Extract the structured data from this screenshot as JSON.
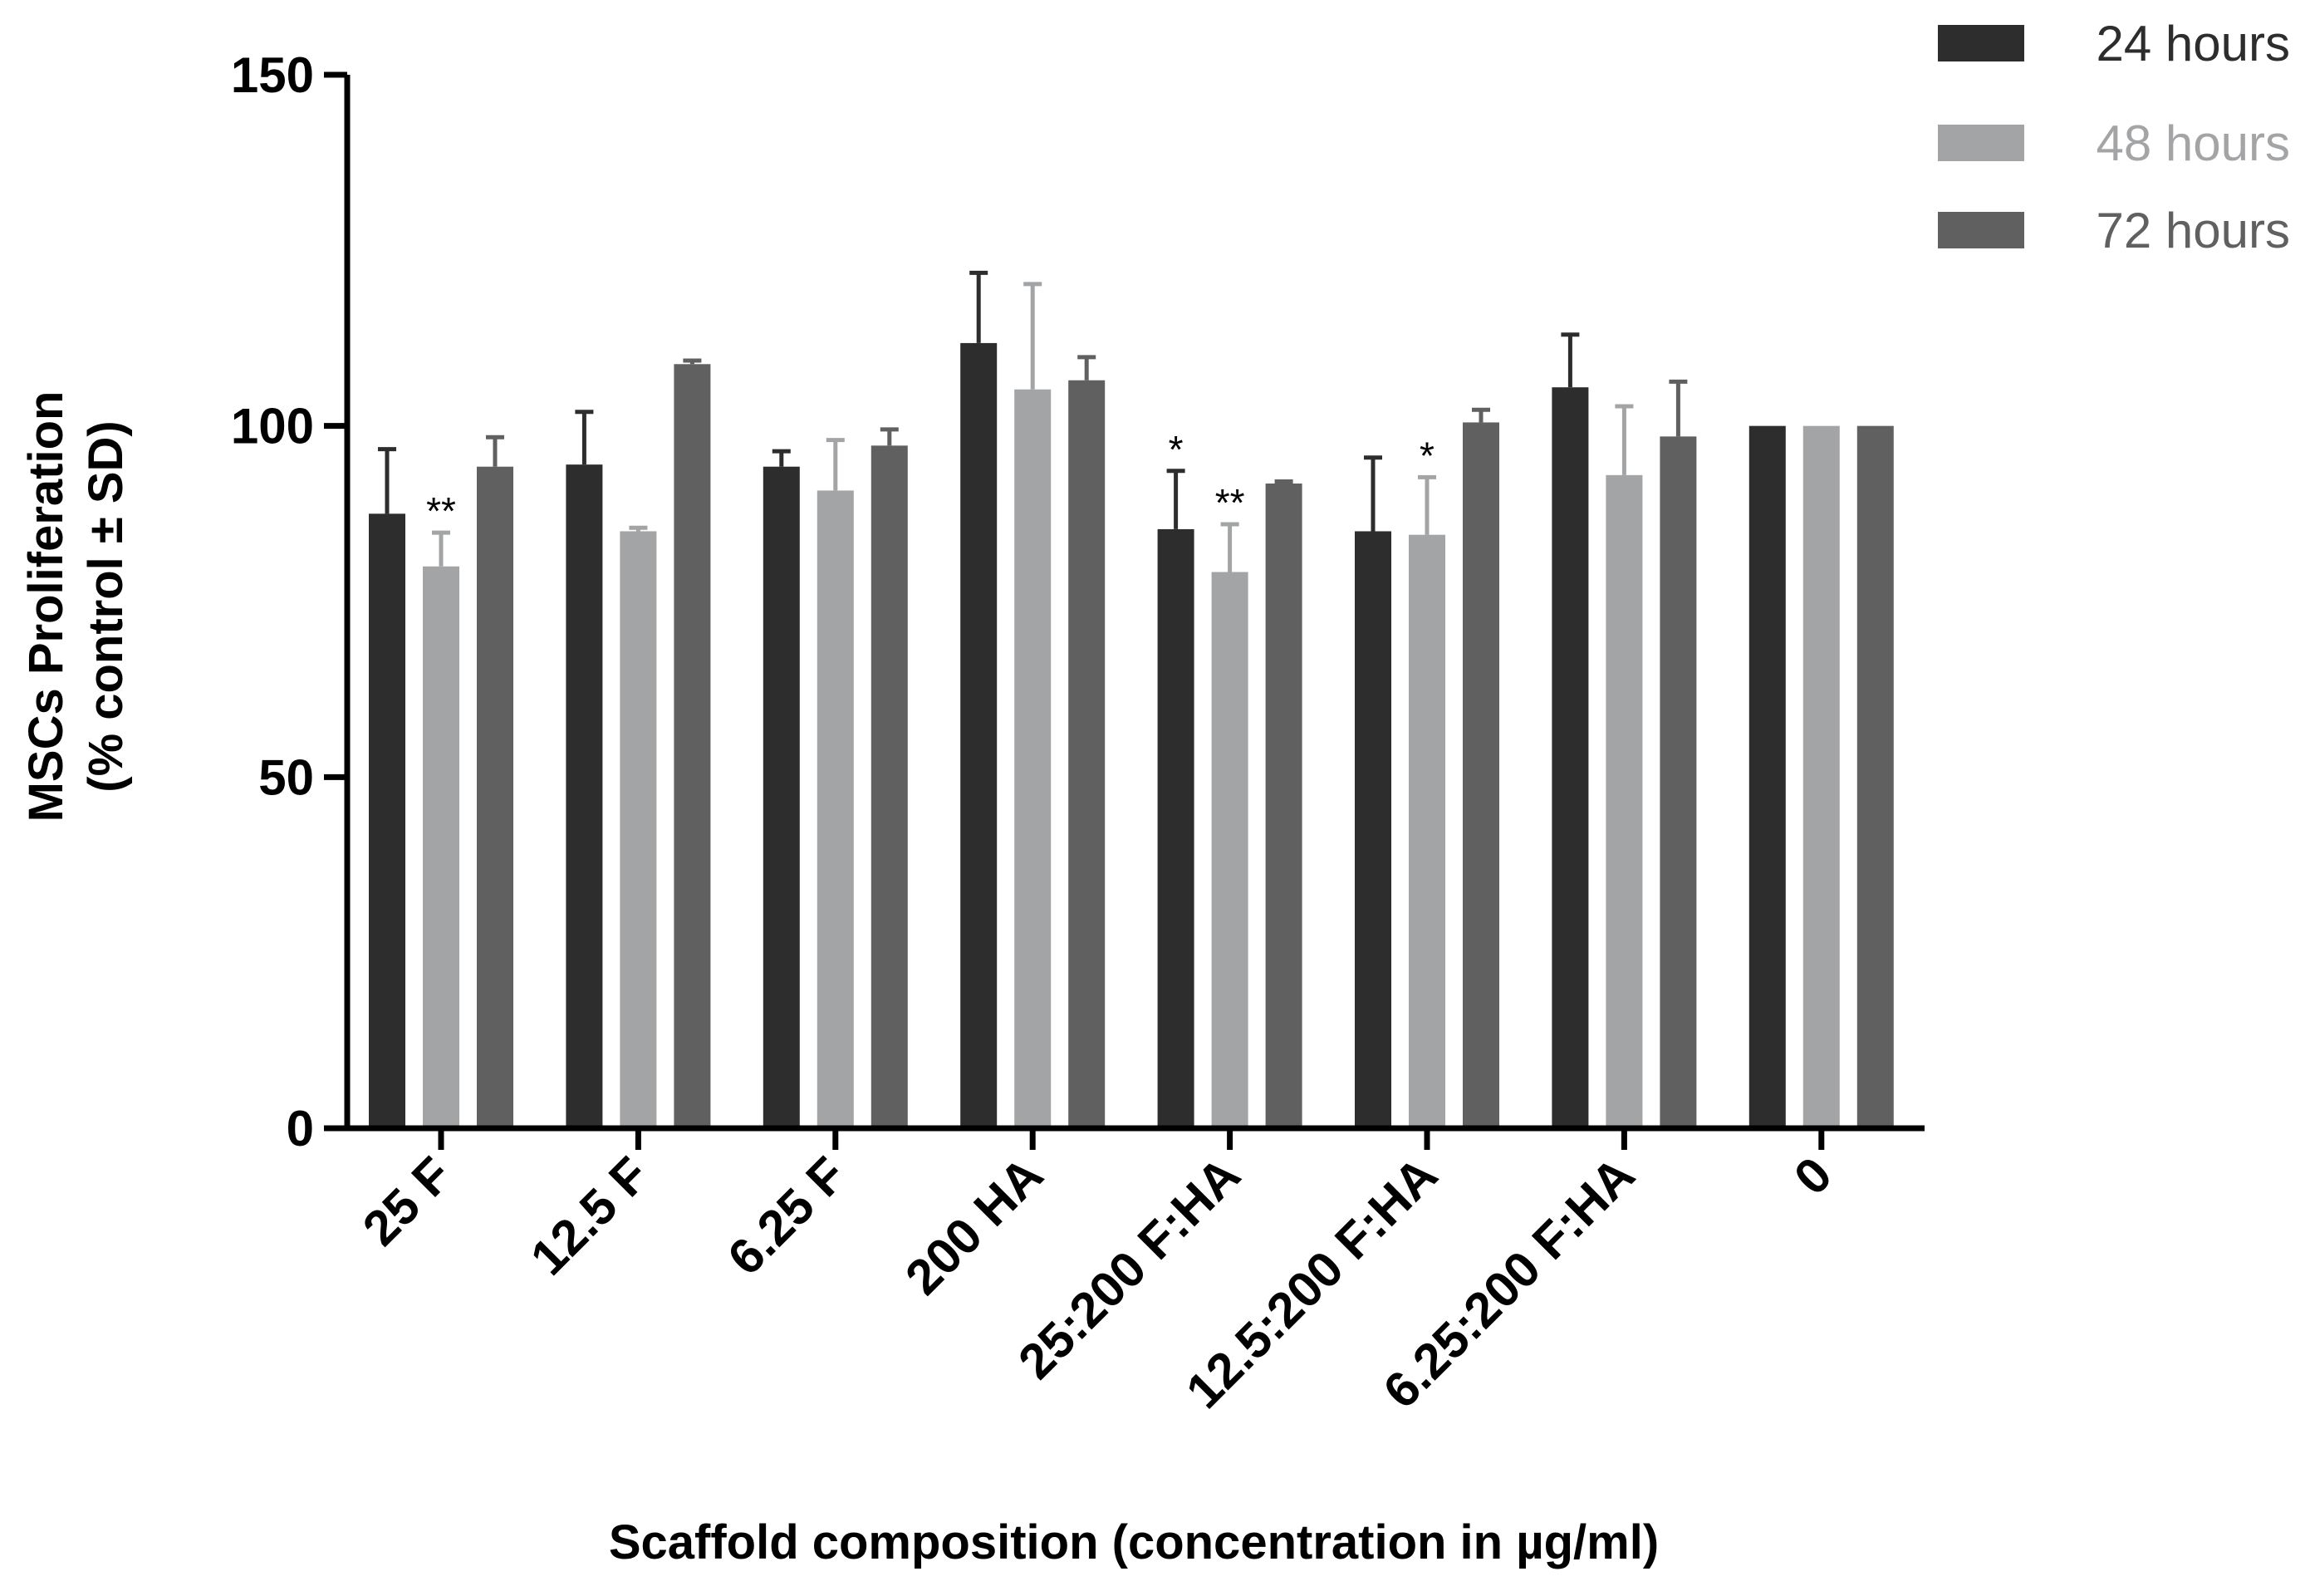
{
  "chart_data": {
    "type": "bar",
    "title": "",
    "xlabel": "Scaffold composition (concentration in µg/ml)",
    "ylabel_line1": "MSCs Proliferation",
    "ylabel_line2": "(% control ± SD)",
    "ylim": [
      0,
      150
    ],
    "yticks": [
      0,
      50,
      100,
      150
    ],
    "grid": false,
    "legend_position": "top-right",
    "categories": [
      "25 F",
      "12.5 F",
      "6.25 F",
      "200 HA",
      "25:200 F:HA",
      "12.5:200 F:HA",
      "6.25:200 F:HA",
      "0"
    ],
    "series": [
      {
        "name": "24 hours",
        "color": "#2d2d2d",
        "values": [
          87.5,
          94.5,
          94.2,
          111.8,
          85.3,
          85.0,
          105.5,
          100
        ],
        "errors": [
          9.2,
          7.5,
          2.2,
          10.0,
          8.3,
          10.5,
          7.5,
          0
        ],
        "significance": [
          "",
          "",
          "",
          "",
          "*",
          "",
          "",
          ""
        ]
      },
      {
        "name": "48 hours",
        "color": "#a3a4a6",
        "values": [
          80.0,
          85.0,
          90.8,
          105.2,
          79.2,
          84.5,
          93.0,
          100
        ],
        "errors": [
          4.8,
          0.5,
          7.2,
          15.0,
          6.8,
          8.2,
          9.8,
          0
        ],
        "significance": [
          "**",
          "",
          "",
          "",
          "**",
          "*",
          "",
          ""
        ]
      },
      {
        "name": "72 hours",
        "color": "#606060",
        "values": [
          94.2,
          108.8,
          97.2,
          106.5,
          91.8,
          100.5,
          98.5,
          100
        ],
        "errors": [
          4.2,
          0.5,
          2.3,
          3.3,
          0.3,
          1.8,
          7.8,
          0
        ],
        "significance": [
          "",
          "",
          "",
          "",
          "",
          "",
          "",
          ""
        ]
      }
    ]
  }
}
